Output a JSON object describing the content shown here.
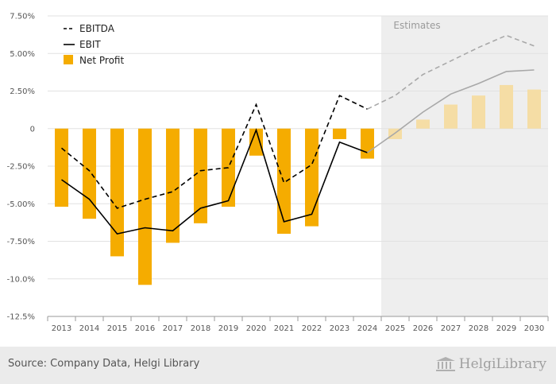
{
  "chart_data": {
    "type": "bar",
    "x": [
      "2013",
      "2014",
      "2015",
      "2016",
      "2017",
      "2018",
      "2019",
      "2020",
      "2021",
      "2022",
      "2023",
      "2024",
      "2025",
      "2026",
      "2027",
      "2028",
      "2029",
      "2030"
    ],
    "estimates_from": "2025",
    "estimates_label": "Estimates",
    "ylim": [
      -12.5,
      7.5
    ],
    "yticks": [
      "7.50%",
      "5.00%",
      "2.50%",
      "0",
      "-2.50%",
      "-5.00%",
      "-7.50%",
      "-10.0%",
      "-12.5%"
    ],
    "ytick_values": [
      7.5,
      5,
      2.5,
      0,
      -2.5,
      -5,
      -7.5,
      -10,
      -12.5
    ],
    "grid": true,
    "legend_position": "top-left",
    "series": [
      {
        "name": "EBITDA",
        "kind": "line",
        "style": "dashed",
        "color": "#000000",
        "values": [
          -1.3,
          -2.8,
          -5.3,
          -4.7,
          -4.2,
          -2.8,
          -2.6,
          1.6,
          -3.6,
          -2.4,
          2.2,
          1.3,
          2.2,
          3.6,
          4.5,
          5.4,
          6.2,
          5.5
        ]
      },
      {
        "name": "EBIT",
        "kind": "line",
        "style": "solid",
        "color": "#000000",
        "values": [
          -3.4,
          -4.7,
          -7.0,
          -6.6,
          -6.8,
          -5.3,
          -4.8,
          -0.1,
          -6.2,
          -5.7,
          -0.9,
          -1.6,
          -0.3,
          1.1,
          2.3,
          3.0,
          3.8,
          3.9
        ]
      },
      {
        "name": "Net Profit",
        "kind": "bar",
        "color": "#f5ac00",
        "values": [
          -5.2,
          -6.0,
          -8.5,
          -10.4,
          -7.6,
          -6.3,
          -5.2,
          -1.8,
          -7.0,
          -6.5,
          -0.7,
          -2.0,
          -0.7,
          0.6,
          1.6,
          2.2,
          2.9,
          2.6
        ]
      }
    ]
  },
  "footer": {
    "source": "Source: Company Data, Helgi Library",
    "brand": "HelgiLibrary"
  },
  "colors": {
    "bar_actual": "#f5ac00",
    "bar_estimate": "#f5dda5",
    "line_estimate": "#a8a8a8",
    "estimate_shade": "#eeeeee"
  }
}
